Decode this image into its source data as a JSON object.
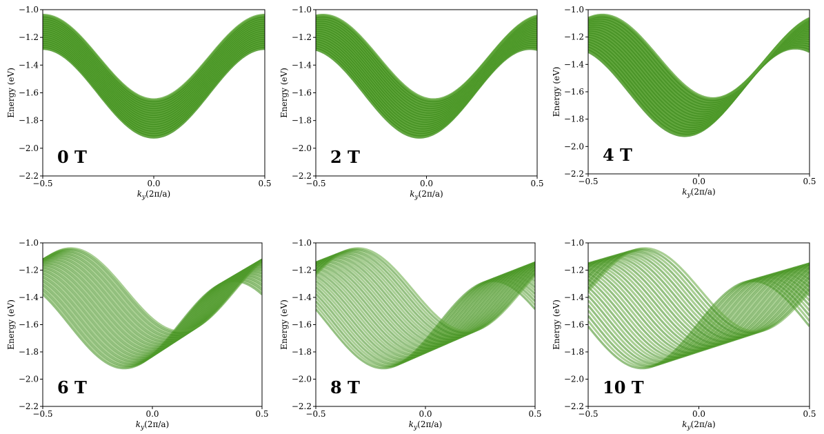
{
  "figure": {
    "palette": {
      "band": "#3d8c1a",
      "band_light": "#62a83c",
      "axes": "#000000"
    }
  },
  "chart_data": [
    {
      "type": "line",
      "title": "",
      "panel_label": "0 T",
      "xlabel": "k_y(2π/a)",
      "ylabel": "Energy (eV)",
      "xlim": [
        -0.5,
        0.5
      ],
      "ylim": [
        -2.2,
        -1.0
      ],
      "xticks": [
        "-0.5",
        "0.0",
        "0.5"
      ],
      "yticks": [
        "-1.0",
        "-1.2",
        "-1.4",
        "-1.6",
        "-1.8",
        "-2.0",
        "-2.2"
      ],
      "grid": false,
      "band_top": {
        "x": [
          -0.5,
          0.0,
          0.5
        ],
        "y": [
          -1.04,
          -1.65,
          -1.04
        ]
      },
      "band_bottom": {
        "x": [
          -0.5,
          0.0,
          0.5
        ],
        "y": [
          -1.28,
          -1.92,
          -1.28
        ]
      },
      "field_shift": 0.0
    },
    {
      "type": "line",
      "title": "",
      "panel_label": "2 T",
      "xlabel": "k_y(2π/a)",
      "ylabel": "Energy (eV)",
      "xlim": [
        -0.5,
        0.5
      ],
      "ylim": [
        -2.2,
        -1.0
      ],
      "xticks": [
        "-0.5",
        "0.0",
        "0.5"
      ],
      "yticks": [
        "-1.0",
        "-1.2",
        "-1.4",
        "-1.6",
        "-1.8",
        "-2.0",
        "-2.2"
      ],
      "grid": false,
      "band_top": {
        "x": [
          -0.5,
          0.0,
          0.5
        ],
        "y": [
          -1.04,
          -1.65,
          -1.04
        ]
      },
      "band_bottom": {
        "x": [
          -0.5,
          0.0,
          0.5
        ],
        "y": [
          -1.28,
          -1.92,
          -1.28
        ]
      },
      "field_shift": 0.01
    },
    {
      "type": "line",
      "title": "",
      "panel_label": "4 T",
      "xlabel": "k_y(2π/a)",
      "ylabel": "Energy (eV)",
      "xlim": [
        -0.5,
        0.5
      ],
      "ylim": [
        -2.2,
        -1.0
      ],
      "xticks": [
        "-0.5",
        "0.0",
        "0.5"
      ],
      "yticks": [
        "-1.0",
        "-1.2",
        "-1.4",
        "-1.6",
        "-1.8",
        "-2.0",
        "-2.2"
      ],
      "grid": false,
      "band_top": {
        "x": [
          -0.5,
          0.0,
          0.5
        ],
        "y": [
          -1.04,
          -1.65,
          -1.04
        ]
      },
      "band_bottom": {
        "x": [
          -0.5,
          0.0,
          0.5
        ],
        "y": [
          -1.28,
          -1.92,
          -1.28
        ]
      },
      "field_shift": 0.02
    },
    {
      "type": "line",
      "title": "",
      "panel_label": "6 T",
      "xlabel": "k_y(2π/a)",
      "ylabel": "Energy (eV)",
      "xlim": [
        -0.5,
        0.5
      ],
      "ylim": [
        -2.2,
        -1.0
      ],
      "xticks": [
        "-0.5",
        "0.0",
        "0.5"
      ],
      "yticks": [
        "-1.0",
        "-1.2",
        "-1.4",
        "-1.6",
        "-1.8",
        "-2.0",
        "-2.2"
      ],
      "grid": false,
      "band_top": {
        "x": [
          -0.5,
          0.0,
          0.5
        ],
        "y": [
          -1.04,
          -1.65,
          -1.04
        ]
      },
      "band_bottom": {
        "x": [
          -0.5,
          0.0,
          0.5
        ],
        "y": [
          -1.28,
          -1.92,
          -1.28
        ]
      },
      "field_shift": 0.04
    },
    {
      "type": "line",
      "title": "",
      "panel_label": "8 T",
      "xlabel": "k_y(2π/a)",
      "ylabel": "Energy (eV)",
      "xlim": [
        -0.5,
        0.5
      ],
      "ylim": [
        -2.2,
        -1.0
      ],
      "xticks": [
        "-0.5",
        "0.0",
        "0.5"
      ],
      "yticks": [
        "-1.0",
        "-1.2",
        "-1.4",
        "-1.6",
        "-1.8",
        "-2.0",
        "-2.2"
      ],
      "grid": false,
      "band_top": {
        "x": [
          -0.5,
          0.0,
          0.5
        ],
        "y": [
          -1.04,
          -1.65,
          -1.04
        ]
      },
      "band_bottom": {
        "x": [
          -0.5,
          0.0,
          0.5
        ],
        "y": [
          -1.28,
          -1.92,
          -1.28
        ]
      },
      "field_shift": 0.06
    },
    {
      "type": "line",
      "title": "",
      "panel_label": "10 T",
      "xlabel": "k_y(2π/a)",
      "ylabel": "Energy (eV)",
      "xlim": [
        -0.5,
        0.5
      ],
      "ylim": [
        -2.2,
        -1.0
      ],
      "xticks": [
        "-0.5",
        "0.0",
        "0.5"
      ],
      "yticks": [
        "-1.0",
        "-1.2",
        "-1.4",
        "-1.6",
        "-1.8",
        "-2.0",
        "-2.2"
      ],
      "grid": false,
      "band_top": {
        "x": [
          -0.5,
          0.0,
          0.5
        ],
        "y": [
          -1.04,
          -1.65,
          -1.04
        ]
      },
      "band_bottom": {
        "x": [
          -0.5,
          0.0,
          0.5
        ],
        "y": [
          -1.28,
          -1.92,
          -1.28
        ]
      },
      "field_shift": 0.08
    }
  ]
}
